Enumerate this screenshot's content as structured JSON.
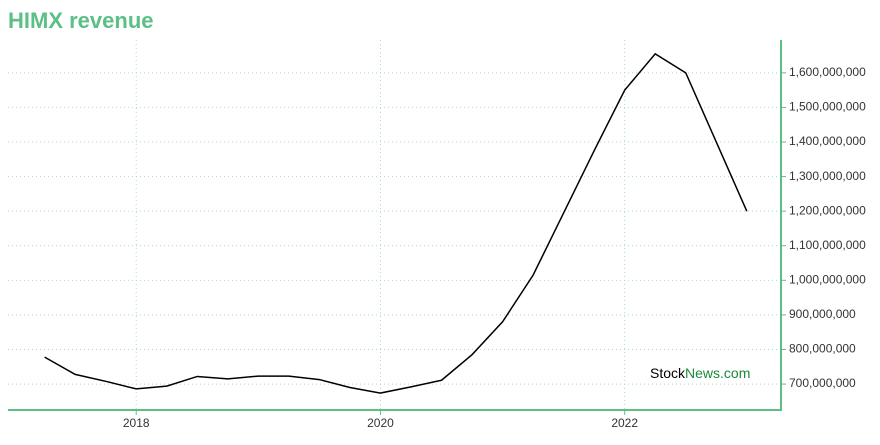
{
  "chart_data": {
    "type": "line",
    "title": "HIMX revenue",
    "x": [
      2017.25,
      2017.5,
      2017.75,
      2018,
      2018.25,
      2018.5,
      2018.75,
      2019,
      2019.25,
      2019.5,
      2019.75,
      2020,
      2020.25,
      2020.5,
      2020.75,
      2021,
      2021.25,
      2021.5,
      2021.75,
      2022,
      2022.25,
      2022.5,
      2023
    ],
    "series": [
      {
        "color": "#000000",
        "values": [
          778000000,
          728000000,
          708000000,
          686000000,
          694000000,
          722000000,
          715000000,
          723000000,
          723000000,
          713000000,
          690000000,
          674000000,
          692000000,
          711000000,
          785000000,
          880000000,
          1015000000,
          1195000000,
          1375000000,
          1550000000,
          1655000000,
          1600000000,
          1200000000
        ]
      }
    ],
    "xlim": [
      2016.95,
      2023.28
    ],
    "xticks": [
      2018,
      2020,
      2022
    ],
    "ylim": [
      625000000,
      1695000000
    ],
    "yticks": [
      {
        "value": 700000000,
        "label": "700,000,000"
      },
      {
        "value": 800000000,
        "label": "800,000,000"
      },
      {
        "value": 900000000,
        "label": "900,000,000"
      },
      {
        "value": 1000000000,
        "label": "1,000,000,000"
      },
      {
        "value": 1100000000,
        "label": "1,100,000,000"
      },
      {
        "value": 1200000000,
        "label": "1,200,000,000"
      },
      {
        "value": 1300000000,
        "label": "1,300,000,000"
      },
      {
        "value": 1400000000,
        "label": "1,400,000,000"
      },
      {
        "value": 1500000000,
        "label": "1,500,000,000"
      },
      {
        "value": 1600000000,
        "label": "1,600,000,000"
      }
    ],
    "grid": true,
    "axis_color": "#5cbf85",
    "watermark": [
      "Stock",
      "News",
      ".com"
    ]
  }
}
